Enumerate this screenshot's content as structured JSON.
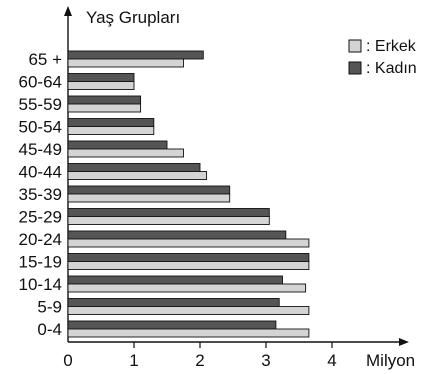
{
  "chart_data": {
    "type": "bar",
    "orientation": "horizontal",
    "ylabel": "Yaş Grupları",
    "xlabel": "Milyon",
    "categories": [
      "65 +",
      "60-64",
      "55-59",
      "50-54",
      "45-49",
      "40-44",
      "35-39",
      "25-29",
      "20-24",
      "15-19",
      "10-14",
      "5-9",
      "0-4"
    ],
    "series": [
      {
        "name": ": Kadın",
        "color": "#555555",
        "values": [
          2.05,
          1.0,
          1.1,
          1.3,
          1.5,
          2.0,
          2.45,
          3.05,
          3.3,
          3.65,
          3.25,
          3.2,
          3.15
        ]
      },
      {
        "name": ": Erkek",
        "color": "#d4d4d4",
        "values": [
          1.75,
          1.0,
          1.1,
          1.3,
          1.75,
          2.1,
          2.45,
          3.05,
          3.65,
          3.65,
          3.6,
          3.65,
          3.65
        ]
      }
    ],
    "xticks": [
      "0",
      "1",
      "2",
      "3",
      "4"
    ],
    "xlim": [
      0,
      4.6
    ],
    "grid": false,
    "legend": "top-right"
  }
}
